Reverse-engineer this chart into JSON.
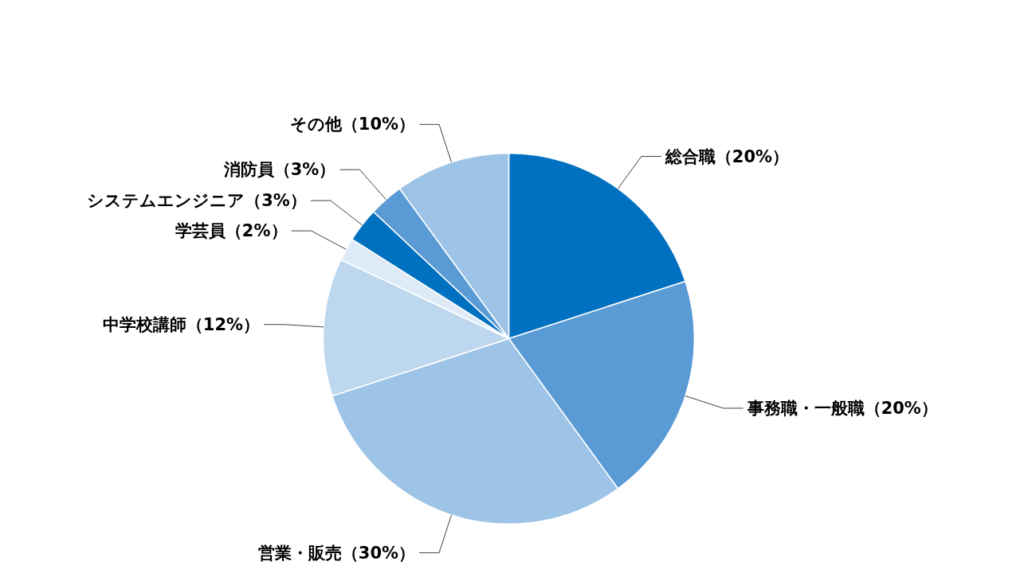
{
  "chart_data": {
    "type": "pie",
    "categories": [
      "総合職（20%）",
      "事務職・一般職（20%）",
      "営業・販売（30%）",
      "中学校講師（12%）",
      "学芸員（2%）",
      "システムエンジニア（3%）",
      "消防員（3%）",
      "その他（10%）"
    ],
    "values": [
      20,
      20,
      30,
      12,
      2,
      3,
      3,
      10
    ],
    "colors": [
      "#0070c0",
      "#5b9bd5",
      "#9dc3e6",
      "#bdd7ee",
      "#deebf7",
      "#0070c0",
      "#5b9bd5",
      "#9dc3e6"
    ]
  }
}
